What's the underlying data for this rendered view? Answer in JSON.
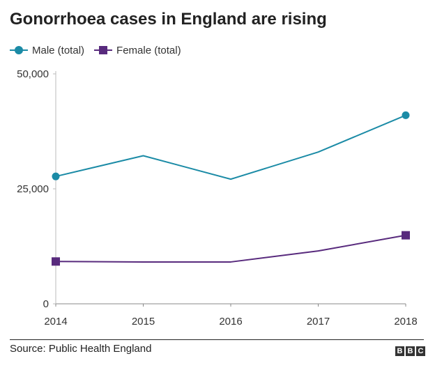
{
  "title": "Gonorrhoea cases in England are rising",
  "source": "Source: Public Health England",
  "brand": {
    "letters": [
      "B",
      "B",
      "C"
    ],
    "color": "#333333"
  },
  "chart_data": {
    "type": "line",
    "title": "Gonorrhoea cases in England are rising",
    "xlabel": "",
    "ylabel": "",
    "x": [
      "2014",
      "2015",
      "2016",
      "2017",
      "2018"
    ],
    "ylim": [
      0,
      50000
    ],
    "yticks": [
      0,
      25000,
      50000
    ],
    "ytick_labels": [
      "0",
      "25,000",
      "50,000"
    ],
    "grid": false,
    "legend_position": "top-left",
    "series": [
      {
        "name": "Male (total)",
        "color": "#1b8ba6",
        "marker": "circle",
        "values": [
          27700,
          32200,
          27100,
          33000,
          41000
        ]
      },
      {
        "name": "Female (total)",
        "color": "#582a7d",
        "marker": "square",
        "values": [
          9200,
          9100,
          9100,
          11500,
          14900
        ]
      }
    ]
  }
}
